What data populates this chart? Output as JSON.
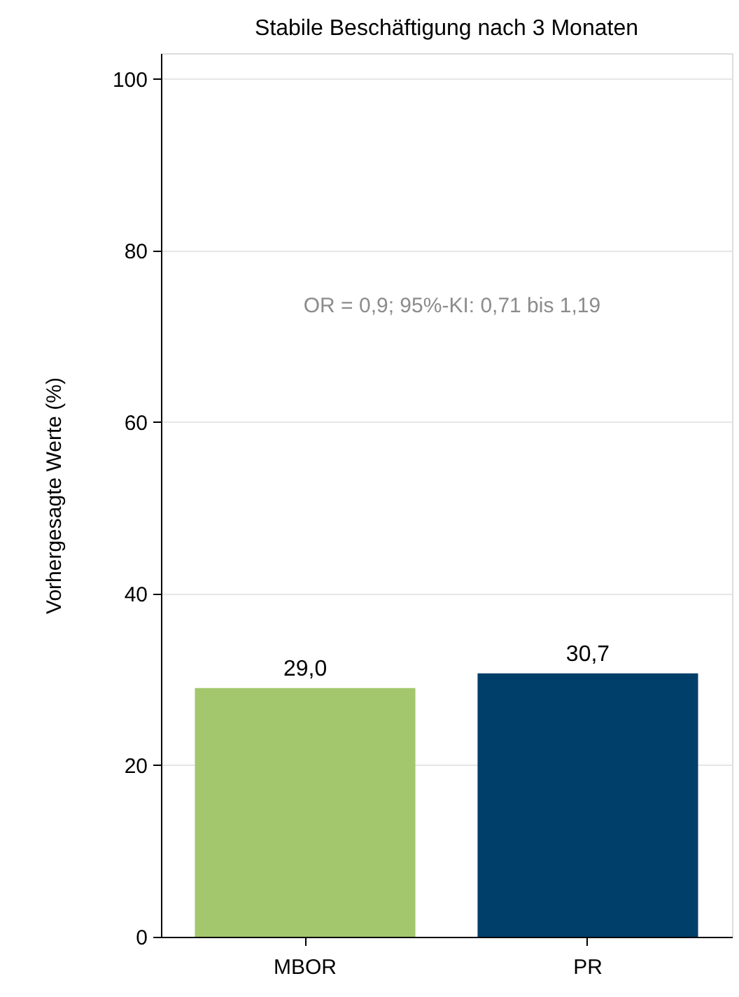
{
  "chart_data": {
    "type": "bar",
    "title": "Stabile Beschäftigung nach 3 Monaten",
    "ylabel": "Vorhergesagte Werte (%)",
    "categories": [
      "MBOR",
      "PR"
    ],
    "values": [
      29.0,
      30.7
    ],
    "colors": [
      "#a3c76d",
      "#003f69"
    ],
    "value_labels": [
      "29,0",
      "30,7"
    ],
    "ylim": [
      0,
      103
    ],
    "yticks": [
      0,
      20,
      40,
      60,
      80,
      100
    ],
    "grid": "y",
    "annotations": [
      "OR = 0,9; 95%-KI: 0,71 bis 1,19"
    ]
  }
}
